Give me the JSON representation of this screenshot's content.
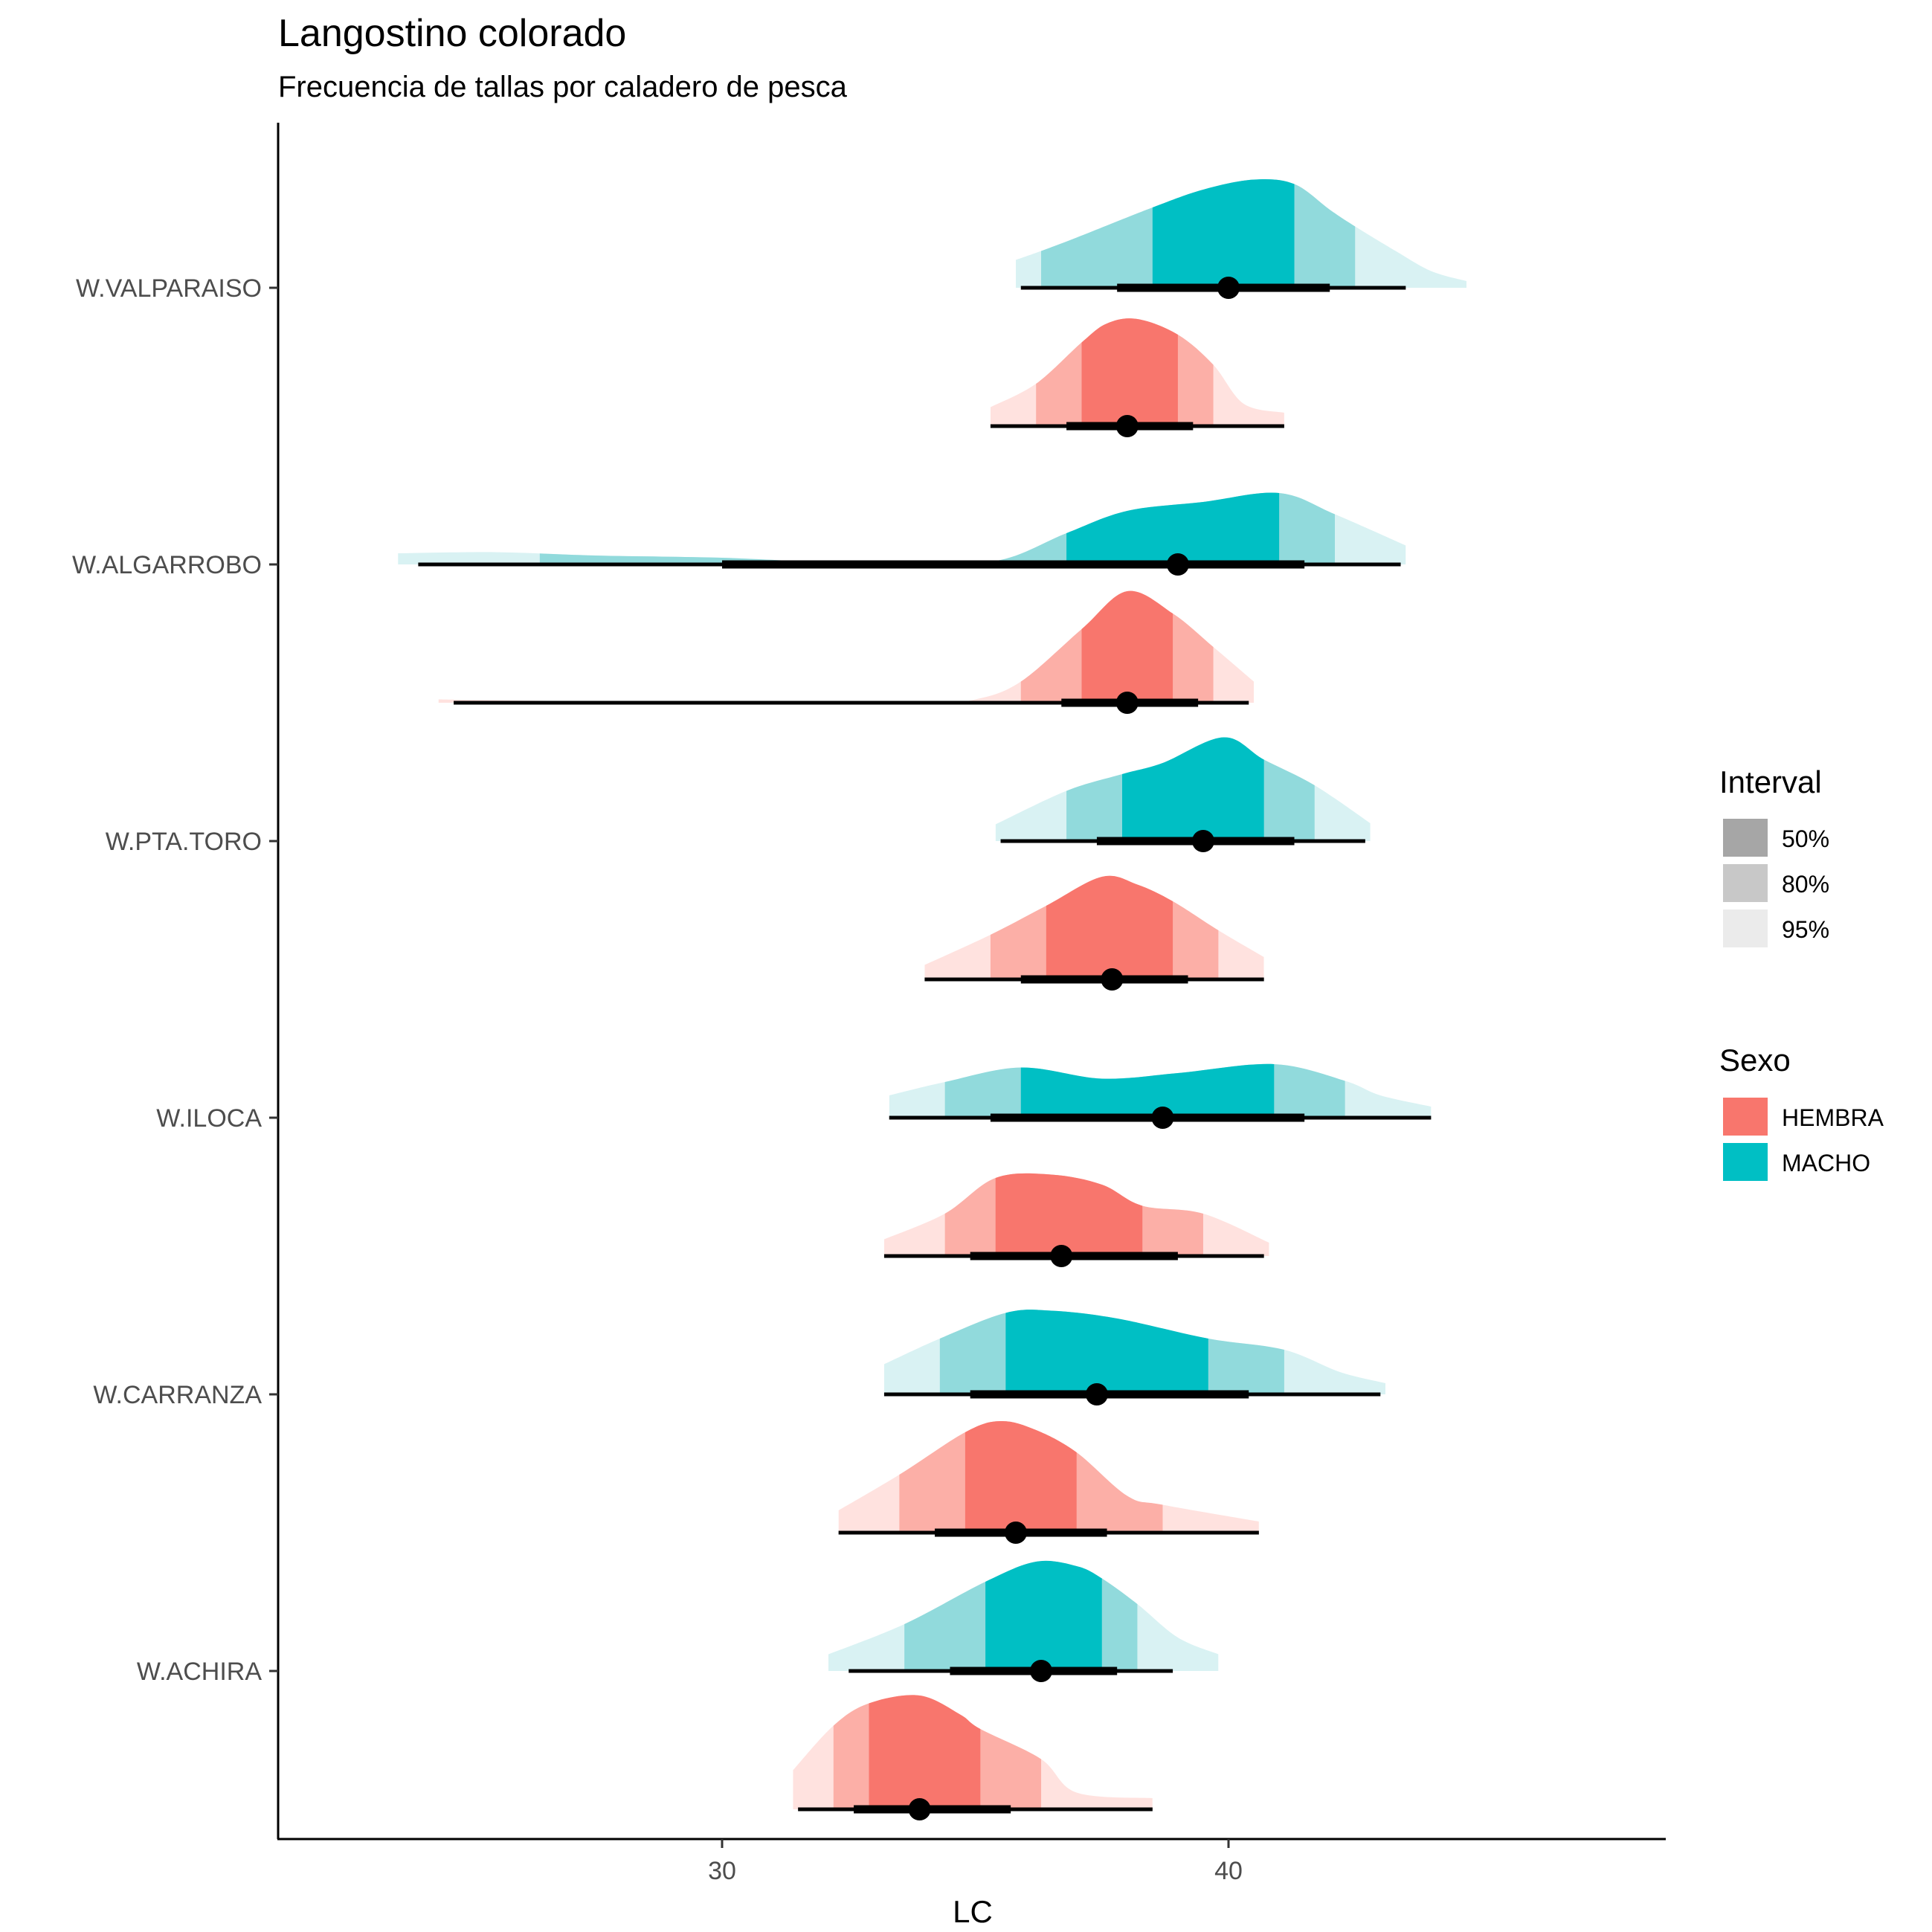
{
  "chart_data": {
    "type": "ridgeline",
    "title": "Langostino colorado",
    "subtitle": "Frecuencia de tallas por caladero de pesca",
    "xlabel": "LC",
    "ylabel": "",
    "xlim": [
      21.2,
      48.6
    ],
    "x_ticks": [
      30,
      40
    ],
    "x_tick_labels": [
      "30",
      "40"
    ],
    "grid": false,
    "categories": [
      "W.VALPARAISO",
      "W.ALGARROBO",
      "W.PTA.TORO",
      "W.ILOCA",
      "W.CARRANZA",
      "W.ACHIRA"
    ],
    "legend": {
      "placement": "right",
      "interval": {
        "title": "Interval",
        "items": [
          {
            "label": "50%",
            "color": "#a6a6a6"
          },
          {
            "label": "80%",
            "color": "#c8c8c8"
          },
          {
            "label": "95%",
            "color": "#ebebeb"
          }
        ]
      },
      "sexo": {
        "title": "Sexo",
        "items": [
          {
            "label": "HEMBRA",
            "color": "#f8766d"
          },
          {
            "label": "MACHO",
            "color": "#00bfc4"
          }
        ]
      }
    },
    "colors": {
      "HEMBRA": {
        "50": "#f8766d",
        "80": "#fcafa7",
        "95": "#ffe2df"
      },
      "MACHO": {
        "50": "#00bfc4",
        "80": "#91dadc",
        "95": "#d9f2f3"
      }
    },
    "series": [
      {
        "category": "W.VALPARAISO",
        "sexo": "MACHO",
        "median": 40.0,
        "interval_50": [
          38.5,
          41.3
        ],
        "interval_80": [
          36.3,
          42.5
        ],
        "interval_95": [
          35.8,
          44.7
        ],
        "point_interval_thick": [
          37.8,
          42.0
        ],
        "point_interval_thin": [
          35.9,
          43.5
        ],
        "density": [
          [
            35.8,
            0.25
          ],
          [
            36.3,
            0.33
          ],
          [
            37.0,
            0.45
          ],
          [
            38.5,
            0.72
          ],
          [
            39.5,
            0.88
          ],
          [
            40.5,
            0.97
          ],
          [
            41.3,
            0.93
          ],
          [
            42.0,
            0.7
          ],
          [
            42.5,
            0.55
          ],
          [
            43.3,
            0.33
          ],
          [
            44.0,
            0.15
          ],
          [
            44.7,
            0.06
          ]
        ]
      },
      {
        "category": "W.VALPARAISO",
        "sexo": "HEMBRA",
        "median": 38.0,
        "interval_50": [
          37.1,
          39.0
        ],
        "interval_80": [
          36.2,
          39.7
        ],
        "interval_95": [
          35.3,
          41.1
        ],
        "point_interval_thick": [
          36.8,
          39.3
        ],
        "point_interval_thin": [
          35.3,
          41.1
        ],
        "density": [
          [
            35.3,
            0.17
          ],
          [
            36.2,
            0.38
          ],
          [
            37.1,
            0.75
          ],
          [
            37.6,
            0.92
          ],
          [
            38.2,
            0.96
          ],
          [
            39.0,
            0.82
          ],
          [
            39.7,
            0.55
          ],
          [
            40.3,
            0.2
          ],
          [
            41.1,
            0.12
          ]
        ]
      },
      {
        "category": "W.ALGARROBO",
        "sexo": "MACHO",
        "median": 39.0,
        "interval_50": [
          36.8,
          41.0
        ],
        "interval_80": [
          26.4,
          42.1
        ],
        "interval_95": [
          23.6,
          43.5
        ],
        "point_interval_thick": [
          30.0,
          41.5
        ],
        "point_interval_thin": [
          24.0,
          43.4
        ],
        "density": [
          [
            23.6,
            0.1
          ],
          [
            25.5,
            0.11
          ],
          [
            27.5,
            0.08
          ],
          [
            30.0,
            0.06
          ],
          [
            32.0,
            0.02
          ],
          [
            34.0,
            0.01
          ],
          [
            35.5,
            0.04
          ],
          [
            36.8,
            0.28
          ],
          [
            38.0,
            0.48
          ],
          [
            39.5,
            0.56
          ],
          [
            41.0,
            0.64
          ],
          [
            42.1,
            0.45
          ],
          [
            43.5,
            0.17
          ]
        ]
      },
      {
        "category": "W.ALGARROBO",
        "sexo": "HEMBRA",
        "median": 38.0,
        "interval_50": [
          37.1,
          38.9
        ],
        "interval_80": [
          35.9,
          39.7
        ],
        "interval_95": [
          24.4,
          40.5
        ],
        "point_interval_thick": [
          36.7,
          39.4
        ],
        "point_interval_thin": [
          24.7,
          40.4
        ],
        "density": [
          [
            24.4,
            0.03
          ],
          [
            26.0,
            0.02
          ],
          [
            30.0,
            0.0
          ],
          [
            34.0,
            0.0
          ],
          [
            35.0,
            0.03
          ],
          [
            35.9,
            0.19
          ],
          [
            37.1,
            0.66
          ],
          [
            38.0,
            1.0
          ],
          [
            38.9,
            0.8
          ],
          [
            39.7,
            0.5
          ],
          [
            40.5,
            0.19
          ]
        ]
      },
      {
        "category": "W.PTA.TORO",
        "sexo": "MACHO",
        "median": 39.5,
        "interval_50": [
          37.9,
          40.7
        ],
        "interval_80": [
          36.8,
          41.7
        ],
        "interval_95": [
          35.4,
          42.8
        ],
        "point_interval_thick": [
          37.4,
          41.3
        ],
        "point_interval_thin": [
          35.5,
          42.7
        ],
        "density": [
          [
            35.4,
            0.15
          ],
          [
            36.8,
            0.45
          ],
          [
            37.9,
            0.6
          ],
          [
            38.7,
            0.7
          ],
          [
            39.9,
            0.93
          ],
          [
            40.7,
            0.73
          ],
          [
            41.7,
            0.5
          ],
          [
            42.8,
            0.16
          ]
        ]
      },
      {
        "category": "W.PTA.TORO",
        "sexo": "HEMBRA",
        "median": 37.7,
        "interval_50": [
          36.4,
          38.9
        ],
        "interval_80": [
          35.3,
          39.8
        ],
        "interval_95": [
          34.0,
          40.7
        ],
        "point_interval_thick": [
          35.9,
          39.2
        ],
        "point_interval_thin": [
          34.0,
          40.7
        ],
        "density": [
          [
            34.0,
            0.13
          ],
          [
            35.3,
            0.4
          ],
          [
            36.4,
            0.66
          ],
          [
            37.5,
            0.92
          ],
          [
            38.2,
            0.85
          ],
          [
            38.9,
            0.7
          ],
          [
            39.8,
            0.44
          ],
          [
            40.7,
            0.2
          ]
        ]
      },
      {
        "category": "W.ILOCA",
        "sexo": "MACHO",
        "median": 38.7,
        "interval_50": [
          35.9,
          40.9
        ],
        "interval_80": [
          34.4,
          42.3
        ],
        "interval_95": [
          33.3,
          44.0
        ],
        "point_interval_thick": [
          35.3,
          41.5
        ],
        "point_interval_thin": [
          33.3,
          44.0
        ],
        "density": [
          [
            33.3,
            0.2
          ],
          [
            34.4,
            0.32
          ],
          [
            35.9,
            0.45
          ],
          [
            37.5,
            0.35
          ],
          [
            39.0,
            0.4
          ],
          [
            40.9,
            0.48
          ],
          [
            42.3,
            0.33
          ],
          [
            43.0,
            0.2
          ],
          [
            44.0,
            0.1
          ]
        ]
      },
      {
        "category": "W.ILOCA",
        "sexo": "HEMBRA",
        "median": 36.7,
        "interval_50": [
          35.4,
          38.3
        ],
        "interval_80": [
          34.4,
          39.5
        ],
        "interval_95": [
          33.2,
          40.8
        ],
        "point_interval_thick": [
          34.9,
          39.0
        ],
        "point_interval_thin": [
          33.2,
          40.7
        ],
        "density": [
          [
            33.2,
            0.15
          ],
          [
            34.4,
            0.38
          ],
          [
            35.4,
            0.7
          ],
          [
            36.5,
            0.73
          ],
          [
            37.5,
            0.64
          ],
          [
            38.3,
            0.45
          ],
          [
            39.5,
            0.38
          ],
          [
            40.8,
            0.12
          ]
        ]
      },
      {
        "category": "W.CARRANZA",
        "sexo": "MACHO",
        "median": 37.4,
        "interval_50": [
          35.6,
          39.6
        ],
        "interval_80": [
          34.3,
          41.1
        ],
        "interval_95": [
          33.2,
          43.1
        ],
        "point_interval_thick": [
          34.9,
          40.4
        ],
        "point_interval_thin": [
          33.2,
          43.0
        ],
        "density": [
          [
            33.2,
            0.27
          ],
          [
            34.3,
            0.5
          ],
          [
            35.6,
            0.73
          ],
          [
            36.5,
            0.75
          ],
          [
            37.8,
            0.68
          ],
          [
            39.6,
            0.5
          ],
          [
            41.1,
            0.4
          ],
          [
            42.2,
            0.2
          ],
          [
            43.1,
            0.1
          ]
        ]
      },
      {
        "category": "W.CARRANZA",
        "sexo": "HEMBRA",
        "median": 35.8,
        "interval_50": [
          34.8,
          37.0
        ],
        "interval_80": [
          33.5,
          38.7
        ],
        "interval_95": [
          32.3,
          40.6
        ],
        "point_interval_thick": [
          34.2,
          37.6
        ],
        "point_interval_thin": [
          32.3,
          40.6
        ],
        "density": [
          [
            32.3,
            0.2
          ],
          [
            33.5,
            0.52
          ],
          [
            34.8,
            0.9
          ],
          [
            35.5,
            1.0
          ],
          [
            36.2,
            0.92
          ],
          [
            37.0,
            0.72
          ],
          [
            38.0,
            0.33
          ],
          [
            38.7,
            0.25
          ],
          [
            40.6,
            0.1
          ]
        ]
      },
      {
        "category": "W.ACHIRA",
        "sexo": "MACHO",
        "median": 36.3,
        "interval_50": [
          35.2,
          37.5
        ],
        "interval_80": [
          33.6,
          38.2
        ],
        "interval_95": [
          32.1,
          39.8
        ],
        "point_interval_thick": [
          34.5,
          37.8
        ],
        "point_interval_thin": [
          32.5,
          38.9
        ],
        "density": [
          [
            32.1,
            0.15
          ],
          [
            33.6,
            0.42
          ],
          [
            35.2,
            0.8
          ],
          [
            36.2,
            0.98
          ],
          [
            37.0,
            0.94
          ],
          [
            37.5,
            0.83
          ],
          [
            38.2,
            0.6
          ],
          [
            39.0,
            0.3
          ],
          [
            39.8,
            0.15
          ]
        ]
      },
      {
        "category": "W.ACHIRA",
        "sexo": "HEMBRA",
        "median": 33.9,
        "interval_50": [
          32.9,
          35.1
        ],
        "interval_80": [
          32.2,
          36.3
        ],
        "interval_95": [
          31.4,
          38.5
        ],
        "point_interval_thick": [
          32.6,
          35.7
        ],
        "point_interval_thin": [
          31.5,
          38.5
        ],
        "density": [
          [
            31.4,
            0.35
          ],
          [
            32.2,
            0.75
          ],
          [
            32.9,
            0.95
          ],
          [
            33.9,
            1.02
          ],
          [
            34.7,
            0.85
          ],
          [
            35.1,
            0.72
          ],
          [
            36.3,
            0.45
          ],
          [
            37.0,
            0.15
          ],
          [
            38.5,
            0.1
          ]
        ]
      }
    ]
  }
}
